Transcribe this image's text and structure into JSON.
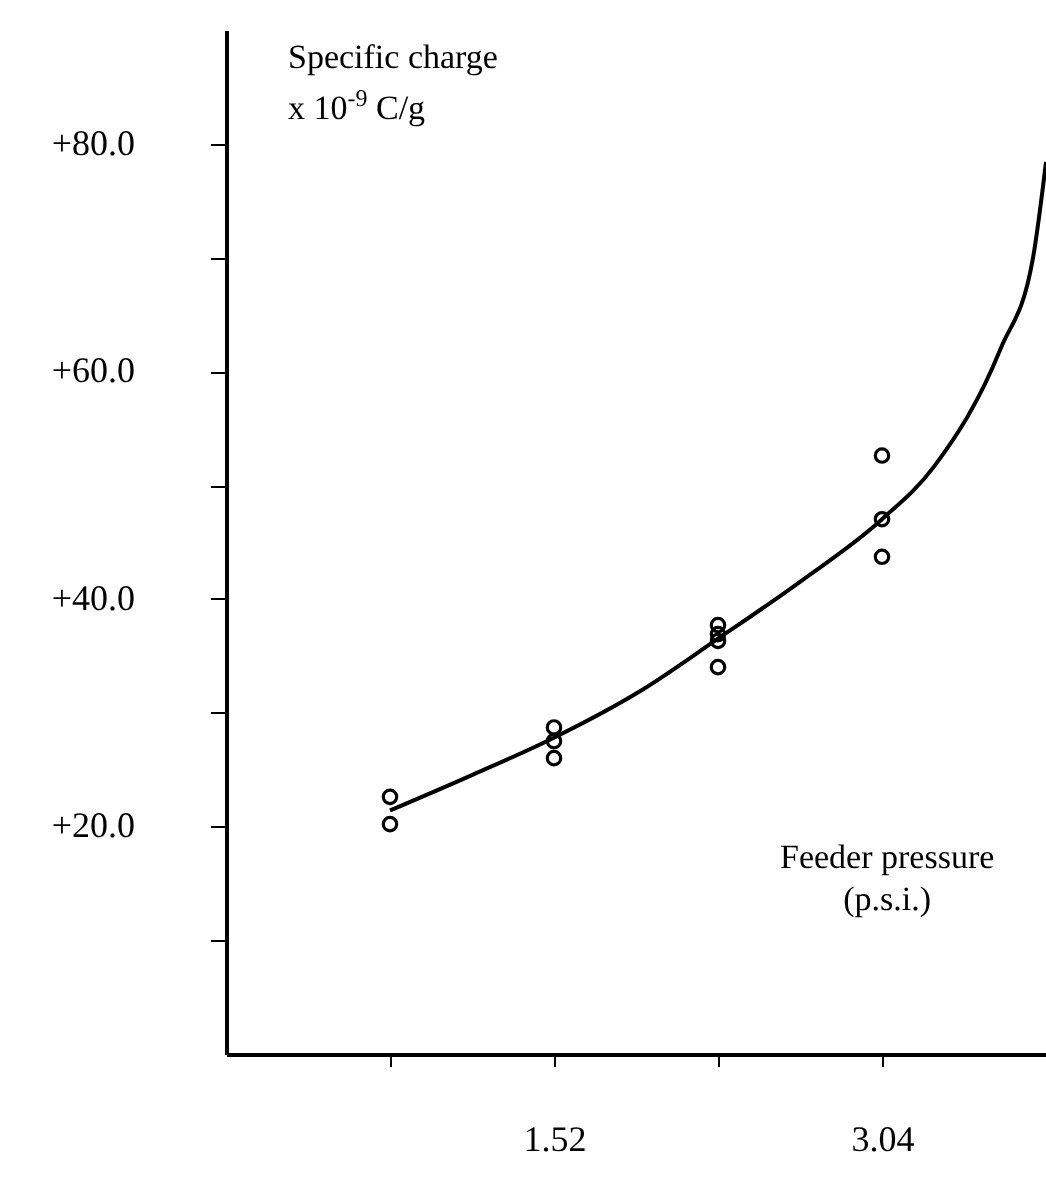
{
  "chart_data": {
    "type": "scatter",
    "xlabel": "Feeder pressure\n(p.s.i.)",
    "ylabel": "Specific charge\nx 10$^{-9}$ C/g",
    "xlim": [
      0,
      3.8
    ],
    "ylim": [
      0,
      90
    ],
    "xticks": [
      {
        "value": 0.76,
        "label": null
      },
      1.52,
      {
        "value": 2.28,
        "label": null
      },
      3.04
    ],
    "yticks": [
      {
        "value": 10,
        "label": null
      },
      {
        "value": 20,
        "label": "+20.0"
      },
      {
        "value": 30,
        "label": null
      },
      {
        "value": 40,
        "label": "+40.0"
      },
      {
        "value": 50,
        "label": null
      },
      {
        "value": 60,
        "label": "+60.0"
      },
      {
        "value": 70,
        "label": null
      },
      {
        "value": 80,
        "label": "+80.0"
      }
    ],
    "grid": false,
    "series": [
      {
        "color": "#000000",
        "marker": "circle",
        "x": [
          0.76,
          0.76,
          1.52,
          1.52,
          1.52,
          2.28,
          2.28,
          2.28,
          2.28,
          3.04,
          3.04,
          3.04
        ],
        "values": [
          22.6,
          20.2,
          28.7,
          27.5,
          26.0,
          37.7,
          36.9,
          36.3,
          34.0,
          52.6,
          47.0,
          43.7
        ]
      },
      {
        "type": "line",
        "color": "#000000",
        "line_style": "solid",
        "marker": "none",
        "x": [
          0.76,
          1.15,
          1.52,
          1.92,
          2.28,
          2.66,
          3.04,
          3.28,
          3.59,
          3.74,
          3.8
        ],
        "values": [
          21.4,
          24.6,
          27.8,
          31.9,
          36.5,
          41.5,
          47.0,
          51.6,
          62,
          70,
          78.4
        ]
      }
    ]
  }
}
